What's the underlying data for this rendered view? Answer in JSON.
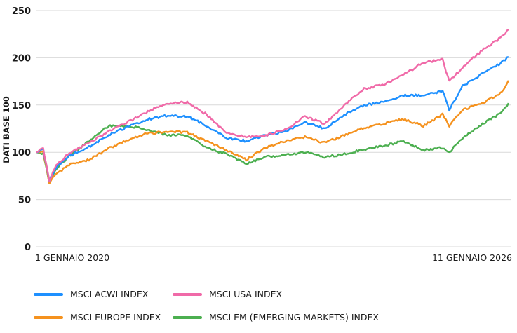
{
  "chart_data": {
    "type": "line",
    "title": "",
    "ylabel": "DATI BASE 100",
    "ylim": [
      0,
      250
    ],
    "yticks": [
      0,
      50,
      100,
      150,
      200,
      250
    ],
    "x_labels": [
      "1 GENNAIO 2020",
      "11 GENNAIO 2026"
    ],
    "x_range": [
      "2020-01-01",
      "2026-01-11"
    ],
    "grid": true,
    "legend_position": "bottom",
    "x": [
      "2020-01",
      "2020-02",
      "2020-03",
      "2020-04",
      "2020-06",
      "2020-09",
      "2020-12",
      "2021-03",
      "2021-06",
      "2021-09",
      "2021-12",
      "2022-03",
      "2022-06",
      "2022-09",
      "2022-12",
      "2023-03",
      "2023-06",
      "2023-09",
      "2023-12",
      "2024-03",
      "2024-06",
      "2024-09",
      "2024-12",
      "2025-03",
      "2025-04",
      "2025-06",
      "2025-09",
      "2025-12",
      "2026-01"
    ],
    "series": [
      {
        "name": "MSCI ACWI INDEX",
        "color": "#1e90ff",
        "values": [
          100,
          103,
          70,
          84,
          96,
          106,
          118,
          127,
          135,
          139,
          138,
          128,
          115,
          112,
          118,
          122,
          132,
          125,
          140,
          150,
          153,
          160,
          160,
          165,
          145,
          170,
          183,
          195,
          201
        ]
      },
      {
        "name": "MSCI USA INDEX",
        "color": "#f06aa8",
        "values": [
          100,
          104,
          70,
          86,
          99,
          110,
          122,
          132,
          143,
          152,
          153,
          140,
          120,
          116,
          118,
          124,
          138,
          130,
          150,
          167,
          172,
          182,
          195,
          198,
          175,
          190,
          208,
          222,
          230
        ]
      },
      {
        "name": "MSCI EUROPE INDEX",
        "color": "#f5921e",
        "values": [
          100,
          101,
          68,
          77,
          87,
          92,
          104,
          113,
          120,
          122,
          121,
          112,
          102,
          92,
          105,
          112,
          116,
          110,
          118,
          126,
          130,
          135,
          128,
          140,
          128,
          145,
          152,
          163,
          176
        ]
      },
      {
        "name": "MSCI EM (EMERGING MARKETS) INDEX",
        "color": "#4caf50",
        "values": [
          100,
          98,
          68,
          82,
          96,
          112,
          128,
          128,
          124,
          118,
          118,
          105,
          98,
          88,
          95,
          97,
          100,
          95,
          98,
          103,
          107,
          112,
          102,
          105,
          100,
          115,
          130,
          142,
          152
        ]
      }
    ]
  }
}
